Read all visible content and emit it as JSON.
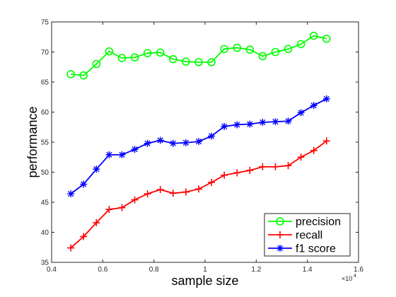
{
  "chart_data": {
    "type": "line",
    "xlabel": "sample size",
    "ylabel": "performance",
    "x_exponent_label": "×10",
    "x_exponent_power": "4",
    "xlim": [
      0.4,
      1.6
    ],
    "ylim": [
      35,
      75
    ],
    "xticks": [
      0.4,
      0.6,
      0.8,
      1,
      1.2,
      1.4,
      1.6
    ],
    "xtick_labels": [
      "0.4",
      "0.6",
      "0.8",
      "1",
      "1.2",
      "1.4",
      "1.6"
    ],
    "yticks": [
      35,
      40,
      45,
      50,
      55,
      60,
      65,
      70,
      75
    ],
    "ytick_labels": [
      "35",
      "40",
      "45",
      "50",
      "55",
      "60",
      "65",
      "70",
      "75"
    ],
    "grid": false,
    "legend_position": "bottom-right",
    "x": [
      0.475,
      0.525,
      0.575,
      0.625,
      0.675,
      0.725,
      0.775,
      0.825,
      0.875,
      0.925,
      0.975,
      1.025,
      1.075,
      1.125,
      1.175,
      1.225,
      1.275,
      1.325,
      1.375,
      1.425,
      1.475
    ],
    "series": [
      {
        "name": "precision",
        "color": "#00ff00",
        "marker": "circle",
        "values": [
          66.3,
          66.1,
          68.0,
          70.1,
          69.0,
          69.1,
          69.8,
          69.9,
          68.8,
          68.4,
          68.3,
          68.3,
          70.5,
          70.7,
          70.4,
          69.3,
          70.0,
          70.5,
          71.3,
          72.7,
          72.2
        ]
      },
      {
        "name": "recall",
        "color": "#ff0000",
        "marker": "plus",
        "values": [
          37.4,
          39.3,
          41.6,
          43.8,
          44.1,
          45.4,
          46.4,
          47.1,
          46.5,
          46.7,
          47.2,
          48.3,
          49.5,
          49.9,
          50.3,
          50.9,
          50.9,
          51.1,
          52.5,
          53.6,
          55.2
        ]
      },
      {
        "name": "f1 score",
        "color": "#0000ff",
        "marker": "asterisk",
        "values": [
          46.4,
          48.0,
          50.5,
          52.9,
          52.9,
          53.8,
          54.8,
          55.3,
          54.8,
          54.9,
          55.1,
          56.0,
          57.6,
          57.9,
          58.0,
          58.3,
          58.4,
          58.5,
          59.9,
          61.1,
          62.2
        ]
      }
    ]
  }
}
